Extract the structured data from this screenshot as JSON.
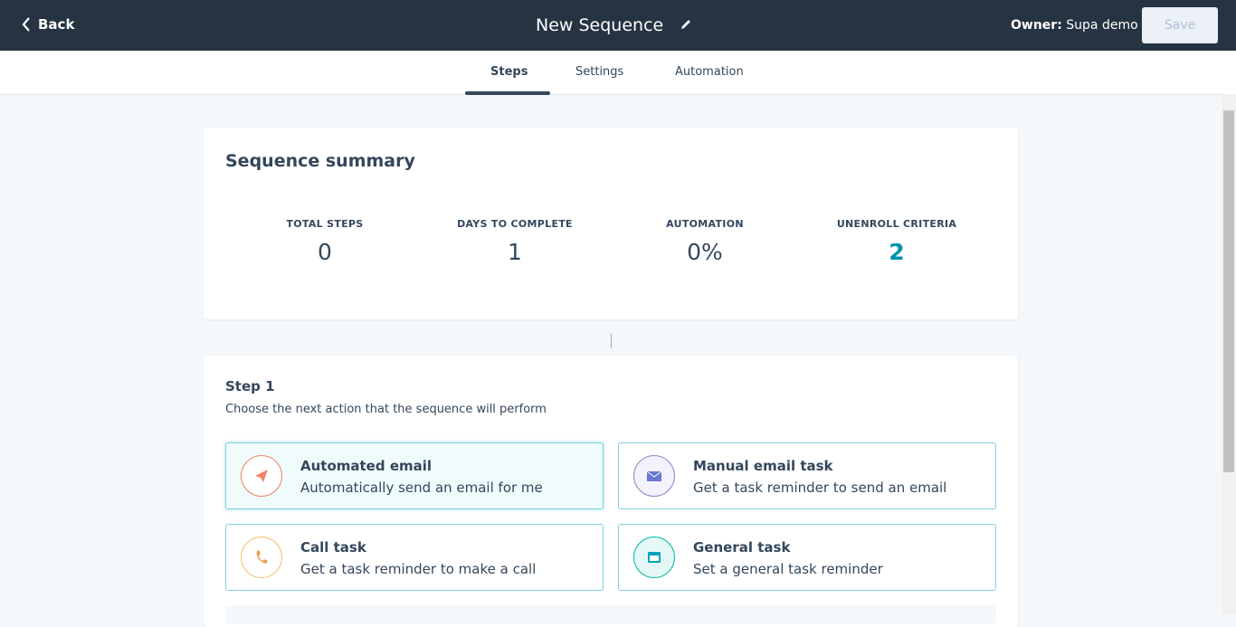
{
  "header": {
    "back": "Back",
    "title": "New Sequence",
    "owner_label": "Owner:",
    "owner_name": "Supa demo",
    "save": "Save"
  },
  "tabs": [
    "Steps",
    "Settings",
    "Automation"
  ],
  "summary": {
    "title": "Sequence summary",
    "stats": [
      {
        "label": "TOTAL STEPS",
        "value": "0"
      },
      {
        "label": "DAYS TO COMPLETE",
        "value": "1"
      },
      {
        "label": "AUTOMATION",
        "value": "0%"
      },
      {
        "label": "UNENROLL CRITERIA",
        "value": "2"
      }
    ]
  },
  "step": {
    "title": "Step 1",
    "subtitle": "Choose the next action that the sequence will perform",
    "options": [
      {
        "title": "Automated email",
        "description": "Automatically send an email for me"
      },
      {
        "title": "Manual email task",
        "description": "Get a task reminder to send an email"
      },
      {
        "title": "Call task",
        "description": "Get a task reminder to make a call"
      },
      {
        "title": "General task",
        "description": "Set a general task reminder"
      }
    ]
  }
}
